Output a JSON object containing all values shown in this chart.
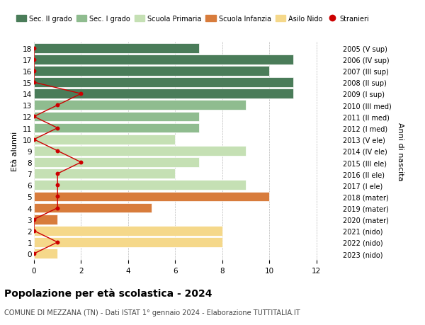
{
  "ages": [
    18,
    17,
    16,
    15,
    14,
    13,
    12,
    11,
    10,
    9,
    8,
    7,
    6,
    5,
    4,
    3,
    2,
    1,
    0
  ],
  "right_labels": [
    "2005 (V sup)",
    "2006 (IV sup)",
    "2007 (III sup)",
    "2008 (II sup)",
    "2009 (I sup)",
    "2010 (III med)",
    "2011 (II med)",
    "2012 (I med)",
    "2013 (V ele)",
    "2014 (IV ele)",
    "2015 (III ele)",
    "2016 (II ele)",
    "2017 (I ele)",
    "2018 (mater)",
    "2019 (mater)",
    "2020 (mater)",
    "2021 (nido)",
    "2022 (nido)",
    "2023 (nido)"
  ],
  "bar_values": [
    7,
    11,
    10,
    11,
    11,
    9,
    7,
    7,
    6,
    9,
    7,
    6,
    9,
    10,
    5,
    1,
    8,
    8,
    1
  ],
  "bar_colors": [
    "#4a7c59",
    "#4a7c59",
    "#4a7c59",
    "#4a7c59",
    "#4a7c59",
    "#8fbc8f",
    "#8fbc8f",
    "#8fbc8f",
    "#c5e0b4",
    "#c5e0b4",
    "#c5e0b4",
    "#c5e0b4",
    "#c5e0b4",
    "#d87c3c",
    "#d87c3c",
    "#d87c3c",
    "#f5d88a",
    "#f5d88a",
    "#f5d88a"
  ],
  "stranieri_values": [
    0,
    0,
    0,
    0,
    2,
    1,
    0,
    1,
    0,
    1,
    2,
    1,
    1,
    1,
    1,
    0,
    0,
    1,
    0
  ],
  "stranieri_color": "#cc0000",
  "xlim": [
    0,
    13
  ],
  "xticks": [
    0,
    2,
    4,
    6,
    8,
    10,
    12
  ],
  "xlabel_main": "Età alunni",
  "ylabel_right": "Anni di nascita",
  "title": "Popolazione per età scolastica - 2024",
  "subtitle": "COMUNE DI MEZZANA (TN) - Dati ISTAT 1° gennaio 2024 - Elaborazione TUTTITALIA.IT",
  "legend_items": [
    {
      "label": "Sec. II grado",
      "color": "#4a7c59"
    },
    {
      "label": "Sec. I grado",
      "color": "#8fbc8f"
    },
    {
      "label": "Scuola Primaria",
      "color": "#c5e0b4"
    },
    {
      "label": "Scuola Infanzia",
      "color": "#d87c3c"
    },
    {
      "label": "Asilo Nido",
      "color": "#f5d88a"
    },
    {
      "label": "Stranieri",
      "color": "#cc0000"
    }
  ],
  "bg_color": "#ffffff",
  "grid_color": "#bbbbbb"
}
